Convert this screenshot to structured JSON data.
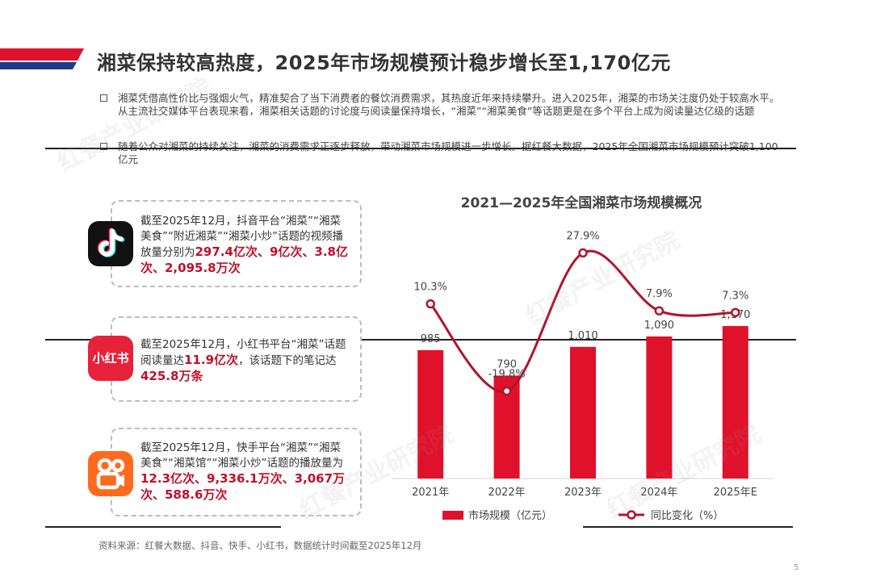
{
  "page": {
    "title": "湘菜保持较高热度，2025年市场规模预计稳步增长至1,170亿元",
    "bullets": [
      "湘菜凭借高性价比与强烟火气，精准契合了当下消费者的餐饮消费需求，其热度近年来持续攀升。进入2025年，湘菜的市场关注度仍处于较高水平。从主流社交媒体平台表现来看，湘菜相关话题的讨论度与阅读量保持增长，“湘菜”“湘菜美食”等话题更是在多个平台上成为阅读量达亿级的话题",
      "随着公众对湘菜的持续关注，湘菜的消费需求正逐步释放，带动湘菜市场规模进一步增长。据红餐大数据，2025年全国湘菜市场规模预计突破1,100亿元"
    ],
    "source": "资料来源：红餐大数据、抖音、快手、小红书，数据统计时间截至2025年12月",
    "page_number": "5",
    "watermark": "红餐产业研究院",
    "colors": {
      "accent": "#c0102a",
      "banner_red": "#e0112b",
      "banner_navy": "#1f3a8a"
    }
  },
  "cards": [
    {
      "platform": "抖音",
      "icon": "douyin-icon",
      "text_before": "截至2025年12月，抖音平台“湘菜”“湘菜美食”“附近湘菜”“湘菜小炒”话题的视频播放量分别为",
      "highlight": "297.4亿次、9亿次、3.8亿次、2,095.8万次",
      "text_after": ""
    },
    {
      "platform": "小红书",
      "icon": "xiaohongshu-icon",
      "icon_label": "小红书",
      "text_before": "截至2025年12月，小红书平台“湘菜”话题阅读量达",
      "highlight": "11.9亿次",
      "text_mid": "，该话题下的笔记达",
      "highlight2": "425.8万条",
      "text_after": ""
    },
    {
      "platform": "快手",
      "icon": "kuaishou-icon",
      "text_before": "截至2025年12月，快手平台“湘菜”“湘菜美食”“湘菜馆”“湘菜小炒”话题的播放量为",
      "highlight": "12.3亿次、9,336.1万次、3,067万次、588.6万次",
      "text_after": ""
    }
  ],
  "chart_data": {
    "type": "bar+line",
    "title": "2021—2025年全国湘菜市场规模概况",
    "categories": [
      "2021年",
      "2022年",
      "2023年",
      "2024年",
      "2025年E"
    ],
    "series": [
      {
        "name": "市场规模（亿元）",
        "type": "bar",
        "values": [
          985,
          790,
          1010,
          1090,
          1170
        ],
        "labels": [
          "985",
          "790",
          "1,010",
          "1,090",
          "1,170"
        ],
        "color": "#e0112b"
      },
      {
        "name": "同比变化（%）",
        "type": "line",
        "values": [
          10.3,
          -19.8,
          27.9,
          7.9,
          7.3
        ],
        "labels": [
          "10.3%",
          "-19.8%",
          "27.9%",
          "7.9%",
          "7.3%"
        ],
        "color": "#b0152b"
      }
    ],
    "bar_ylim": [
      0,
      2000
    ],
    "line_ylim": [
      -50,
      40
    ],
    "legend_position": "bottom"
  }
}
